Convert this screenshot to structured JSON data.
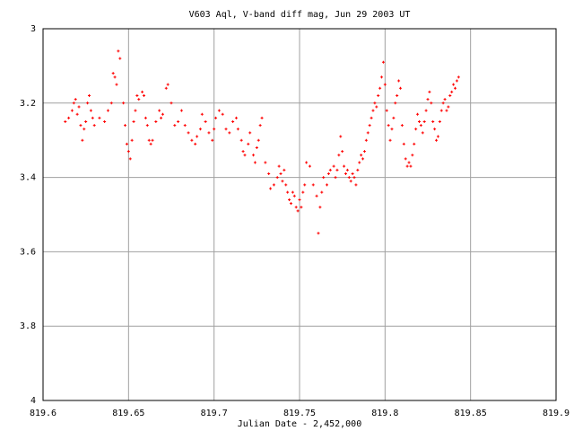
{
  "chart_data": {
    "type": "scatter",
    "title": "V603 Aql, V-band diff mag, Jun 29 2003 UT",
    "x_label": "Julian Date - 2,452,000",
    "xlim": [
      819.6,
      819.9
    ],
    "xticks": [
      819.6,
      819.65,
      819.7,
      819.75,
      819.8,
      819.85,
      819.9
    ],
    "ylim": [
      3,
      4
    ],
    "yticks": [
      3,
      3.2,
      3.4,
      3.6,
      3.8,
      4
    ],
    "invert_y": true,
    "grid": true,
    "x": [
      819.613,
      819.615,
      819.617,
      819.618,
      819.619,
      819.62,
      819.621,
      819.622,
      819.623,
      819.624,
      819.625,
      819.626,
      819.627,
      819.628,
      819.629,
      819.63,
      819.633,
      819.636,
      819.638,
      819.64,
      819.641,
      819.642,
      819.643,
      819.644,
      819.645,
      819.647,
      819.648,
      819.649,
      819.65,
      819.651,
      819.652,
      819.653,
      819.654,
      819.655,
      819.656,
      819.658,
      819.659,
      819.66,
      819.661,
      819.662,
      819.663,
      819.664,
      819.666,
      819.668,
      819.669,
      819.67,
      819.672,
      819.673,
      819.675,
      819.677,
      819.679,
      819.681,
      819.683,
      819.685,
      819.687,
      819.689,
      819.69,
      819.692,
      819.693,
      819.695,
      819.697,
      819.699,
      819.7,
      819.701,
      819.703,
      819.705,
      819.707,
      819.709,
      819.711,
      819.713,
      819.714,
      819.716,
      819.717,
      819.718,
      819.72,
      819.721,
      819.723,
      819.724,
      819.725,
      819.726,
      819.727,
      819.728,
      819.73,
      819.732,
      819.733,
      819.735,
      819.737,
      819.738,
      819.739,
      819.74,
      819.741,
      819.742,
      819.743,
      819.744,
      819.745,
      819.746,
      819.747,
      819.748,
      819.749,
      819.75,
      819.751,
      819.752,
      819.753,
      819.754,
      819.756,
      819.758,
      819.76,
      819.761,
      819.762,
      819.763,
      819.764,
      819.766,
      819.767,
      819.768,
      819.77,
      819.771,
      819.772,
      819.773,
      819.774,
      819.775,
      819.776,
      819.777,
      819.778,
      819.779,
      819.78,
      819.781,
      819.782,
      819.783,
      819.784,
      819.785,
      819.786,
      819.787,
      819.788,
      819.789,
      819.79,
      819.791,
      819.792,
      819.793,
      819.794,
      819.795,
      819.796,
      819.797,
      819.798,
      819.799,
      819.8,
      819.801,
      819.802,
      819.803,
      819.804,
      819.805,
      819.806,
      819.807,
      819.808,
      819.809,
      819.81,
      819.811,
      819.812,
      819.813,
      819.814,
      819.815,
      819.816,
      819.817,
      819.818,
      819.819,
      819.82,
      819.821,
      819.822,
      819.823,
      819.824,
      819.825,
      819.826,
      819.827,
      819.828,
      819.829,
      819.83,
      819.831,
      819.832,
      819.833,
      819.834,
      819.835,
      819.836,
      819.837,
      819.838,
      819.839,
      819.84,
      819.841,
      819.842,
      819.843
    ],
    "series": [
      {
        "color": "#ff0000",
        "values": [
          3.25,
          3.24,
          3.22,
          3.2,
          3.19,
          3.23,
          3.21,
          3.26,
          3.3,
          3.27,
          3.25,
          3.2,
          3.18,
          3.22,
          3.24,
          3.26,
          3.24,
          3.25,
          3.22,
          3.2,
          3.12,
          3.13,
          3.15,
          3.06,
          3.08,
          3.2,
          3.26,
          3.31,
          3.33,
          3.35,
          3.3,
          3.25,
          3.22,
          3.18,
          3.19,
          3.17,
          3.18,
          3.24,
          3.26,
          3.3,
          3.31,
          3.3,
          3.25,
          3.22,
          3.24,
          3.23,
          3.16,
          3.15,
          3.2,
          3.26,
          3.25,
          3.22,
          3.26,
          3.28,
          3.3,
          3.31,
          3.29,
          3.27,
          3.23,
          3.25,
          3.28,
          3.3,
          3.27,
          3.24,
          3.22,
          3.23,
          3.27,
          3.28,
          3.25,
          3.24,
          3.27,
          3.3,
          3.33,
          3.34,
          3.31,
          3.28,
          3.34,
          3.36,
          3.32,
          3.3,
          3.26,
          3.24,
          3.36,
          3.39,
          3.43,
          3.42,
          3.4,
          3.37,
          3.39,
          3.41,
          3.38,
          3.42,
          3.44,
          3.46,
          3.47,
          3.44,
          3.45,
          3.48,
          3.49,
          3.46,
          3.48,
          3.44,
          3.42,
          3.36,
          3.37,
          3.42,
          3.45,
          3.55,
          3.48,
          3.44,
          3.4,
          3.42,
          3.39,
          3.38,
          3.37,
          3.4,
          3.38,
          3.34,
          3.29,
          3.33,
          3.37,
          3.39,
          3.38,
          3.4,
          3.41,
          3.39,
          3.4,
          3.42,
          3.38,
          3.36,
          3.34,
          3.35,
          3.33,
          3.3,
          3.28,
          3.26,
          3.24,
          3.22,
          3.2,
          3.21,
          3.18,
          3.16,
          3.13,
          3.09,
          3.15,
          3.22,
          3.26,
          3.3,
          3.27,
          3.24,
          3.2,
          3.18,
          3.14,
          3.16,
          3.26,
          3.31,
          3.35,
          3.37,
          3.36,
          3.37,
          3.34,
          3.31,
          3.27,
          3.23,
          3.25,
          3.26,
          3.28,
          3.25,
          3.22,
          3.19,
          3.17,
          3.2,
          3.25,
          3.27,
          3.3,
          3.29,
          3.25,
          3.22,
          3.2,
          3.19,
          3.22,
          3.21,
          3.18,
          3.17,
          3.15,
          3.16,
          3.14,
          3.13
        ]
      }
    ]
  }
}
